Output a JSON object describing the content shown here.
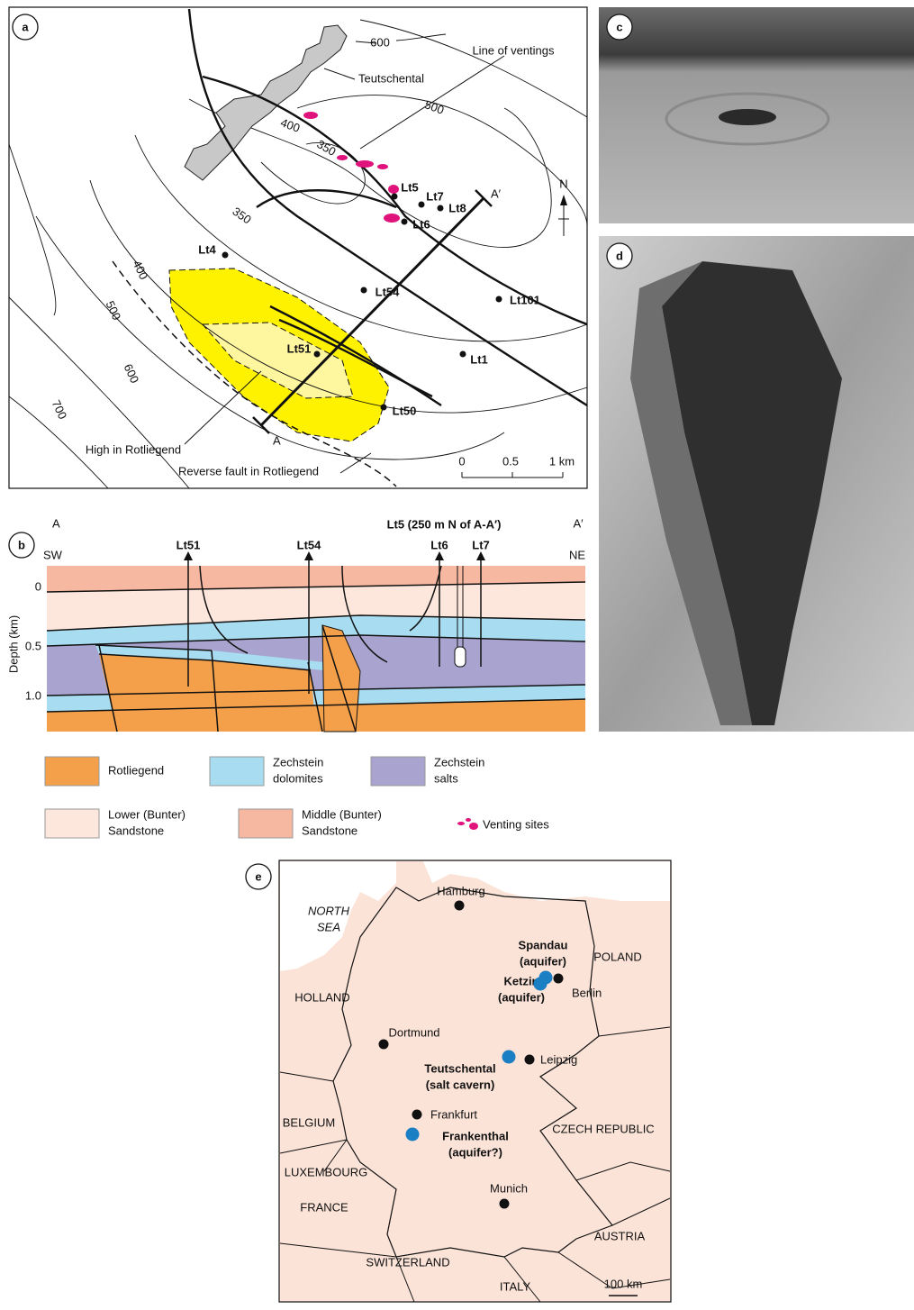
{
  "panel_a": {
    "label": "a",
    "contour_labels": [
      "600",
      "500",
      "400",
      "350",
      "350",
      "400",
      "500",
      "600",
      "700"
    ],
    "place": "Teutschental",
    "ventings_label": "Line of ventings",
    "high_label": "High in Rotliegend",
    "fault_label": "Reverse fault in Rotliegend",
    "north": "N",
    "section_start": "A",
    "section_end": "A′",
    "scale": [
      "0",
      "0.5",
      "1 km"
    ],
    "wells": [
      "Lt5",
      "Lt7",
      "Lt8",
      "Lt6",
      "Lt4",
      "Lt54",
      "Lt101",
      "Lt51",
      "Lt1",
      "Lt50"
    ]
  },
  "panel_b": {
    "label": "b",
    "start": "A",
    "end": "A′",
    "left_dir": "SW",
    "right_dir": "NE",
    "note": "Lt5 (250 m N of A-A′)",
    "wells": [
      "Lt51",
      "Lt54",
      "Lt6",
      "Lt7"
    ],
    "depth_label": "Depth (km)",
    "depth_ticks": [
      "0",
      "0.5",
      "1.0"
    ]
  },
  "legend": [
    {
      "lines": [
        "Rotliegend"
      ]
    },
    {
      "lines": [
        "Zechstein",
        "dolomites"
      ]
    },
    {
      "lines": [
        "Zechstein",
        "salts"
      ]
    },
    {
      "lines": [
        "Lower (Bunter)",
        "Sandstone"
      ]
    },
    {
      "lines": [
        "Middle (Bunter)",
        "Sandstone"
      ]
    },
    {
      "lines": [
        "Venting sites"
      ]
    }
  ],
  "panel_c": {
    "label": "c"
  },
  "panel_d": {
    "label": "d"
  },
  "panel_e": {
    "label": "e",
    "places": [
      {
        "lines": [
          "NORTH",
          "SEA"
        ]
      },
      {
        "lines": [
          "Hamburg"
        ]
      },
      {
        "lines": [
          "Spandau",
          "(aquifer)"
        ]
      },
      {
        "lines": [
          "POLAND"
        ]
      },
      {
        "lines": [
          "Ketzin",
          "(aquifer)"
        ]
      },
      {
        "lines": [
          "Berlin"
        ]
      },
      {
        "lines": [
          "HOLLAND"
        ]
      },
      {
        "lines": [
          "Dortmund"
        ]
      },
      {
        "lines": [
          "Teutschental",
          "(salt cavern)"
        ]
      },
      {
        "lines": [
          "Leipzig"
        ]
      },
      {
        "lines": [
          "BELGIUM"
        ]
      },
      {
        "lines": [
          "Frankfurt"
        ]
      },
      {
        "lines": [
          "Frankenthal",
          "(aquifer?)"
        ]
      },
      {
        "lines": [
          "CZECH REPUBLIC"
        ]
      },
      {
        "lines": [
          "LUXEMBOURG"
        ]
      },
      {
        "lines": [
          "Munich"
        ]
      },
      {
        "lines": [
          "FRANCE"
        ]
      },
      {
        "lines": [
          "AUSTRIA"
        ]
      },
      {
        "lines": [
          "SWITZERLAND"
        ]
      },
      {
        "lines": [
          "ITALY"
        ]
      }
    ],
    "scale": "100 km"
  }
}
